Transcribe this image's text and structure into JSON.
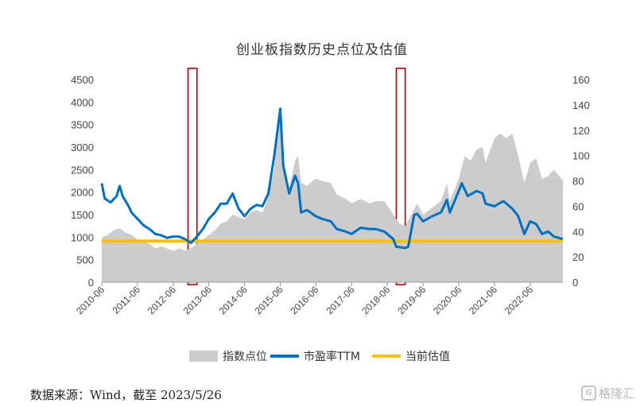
{
  "chart_data": {
    "type": "area+line",
    "title": "创业板指数历史点位及估值",
    "y_left": {
      "min": 0,
      "max": 4500,
      "step": 500,
      "ticks": [
        "0",
        "500",
        "1000",
        "1500",
        "2000",
        "2500",
        "3000",
        "3500",
        "4000",
        "4500"
      ]
    },
    "y_right": {
      "min": 0,
      "max": 160,
      "step": 20,
      "ticks": [
        "0",
        "20",
        "40",
        "60",
        "80",
        "100",
        "120",
        "140",
        "160"
      ]
    },
    "x_range": [
      "2010-06",
      "2023-05"
    ],
    "x_ticks": [
      "2010-06",
      "2011-06",
      "2012-06",
      "2013-06",
      "2014-06",
      "2015-06",
      "2016-06",
      "2017-06",
      "2018-06",
      "2019-06",
      "2020-06",
      "2021-06",
      "2022-06"
    ],
    "current_valuation": 32.5,
    "highlights": [
      {
        "from": "2012-11",
        "to": "2013-02"
      },
      {
        "from": "2018-09",
        "to": "2018-12"
      }
    ],
    "series": [
      {
        "name": "指数点位",
        "type": "area",
        "axis": "left",
        "color": "#cccccc",
        "points": [
          [
            "2010-06",
            1000
          ],
          [
            "2010-08",
            1050
          ],
          [
            "2010-10",
            1150
          ],
          [
            "2010-12",
            1200
          ],
          [
            "2011-02",
            1100
          ],
          [
            "2011-04",
            1050
          ],
          [
            "2011-06",
            950
          ],
          [
            "2011-08",
            900
          ],
          [
            "2011-10",
            850
          ],
          [
            "2011-12",
            750
          ],
          [
            "2012-02",
            800
          ],
          [
            "2012-04",
            750
          ],
          [
            "2012-06",
            700
          ],
          [
            "2012-08",
            750
          ],
          [
            "2012-10",
            700
          ],
          [
            "2012-12",
            750
          ],
          [
            "2013-02",
            850
          ],
          [
            "2013-04",
            950
          ],
          [
            "2013-06",
            1050
          ],
          [
            "2013-08",
            1150
          ],
          [
            "2013-10",
            1300
          ],
          [
            "2013-12",
            1350
          ],
          [
            "2014-02",
            1500
          ],
          [
            "2014-04",
            1450
          ],
          [
            "2014-06",
            1400
          ],
          [
            "2014-08",
            1550
          ],
          [
            "2014-10",
            1600
          ],
          [
            "2014-12",
            1550
          ],
          [
            "2015-02",
            1900
          ],
          [
            "2015-04",
            2500
          ],
          [
            "2015-06",
            3950
          ],
          [
            "2015-07",
            2700
          ],
          [
            "2015-09",
            2100
          ],
          [
            "2015-11",
            2700
          ],
          [
            "2015-12",
            2800
          ],
          [
            "2016-01",
            2200
          ],
          [
            "2016-03",
            2150
          ],
          [
            "2016-06",
            2300
          ],
          [
            "2016-08",
            2250
          ],
          [
            "2016-11",
            2200
          ],
          [
            "2017-01",
            1950
          ],
          [
            "2017-04",
            1850
          ],
          [
            "2017-06",
            1750
          ],
          [
            "2017-09",
            1850
          ],
          [
            "2017-12",
            1750
          ],
          [
            "2018-02",
            1800
          ],
          [
            "2018-05",
            1800
          ],
          [
            "2018-08",
            1500
          ],
          [
            "2018-10",
            1300
          ],
          [
            "2018-12",
            1250
          ],
          [
            "2019-02",
            1500
          ],
          [
            "2019-04",
            1750
          ],
          [
            "2019-06",
            1500
          ],
          [
            "2019-09",
            1650
          ],
          [
            "2019-12",
            1800
          ],
          [
            "2020-02",
            2200
          ],
          [
            "2020-03",
            1800
          ],
          [
            "2020-06",
            2300
          ],
          [
            "2020-08",
            2800
          ],
          [
            "2020-10",
            2700
          ],
          [
            "2020-12",
            2950
          ],
          [
            "2021-02",
            3000
          ],
          [
            "2021-03",
            2650
          ],
          [
            "2021-06",
            3200
          ],
          [
            "2021-08",
            3300
          ],
          [
            "2021-10",
            3200
          ],
          [
            "2021-12",
            3300
          ],
          [
            "2022-02",
            2800
          ],
          [
            "2022-04",
            2200
          ],
          [
            "2022-06",
            2650
          ],
          [
            "2022-08",
            2750
          ],
          [
            "2022-10",
            2300
          ],
          [
            "2022-12",
            2350
          ],
          [
            "2023-02",
            2500
          ],
          [
            "2023-05",
            2250
          ]
        ]
      },
      {
        "name": "市盈率TTM",
        "type": "line",
        "axis": "right",
        "color": "#0070c0",
        "points": [
          [
            "2010-06",
            78
          ],
          [
            "2010-07",
            66
          ],
          [
            "2010-09",
            63
          ],
          [
            "2010-11",
            68
          ],
          [
            "2010-12",
            76
          ],
          [
            "2011-01",
            68
          ],
          [
            "2011-03",
            60
          ],
          [
            "2011-04",
            55
          ],
          [
            "2011-06",
            50
          ],
          [
            "2011-08",
            45
          ],
          [
            "2011-10",
            42
          ],
          [
            "2011-12",
            38
          ],
          [
            "2012-02",
            37
          ],
          [
            "2012-04",
            35
          ],
          [
            "2012-06",
            36
          ],
          [
            "2012-08",
            36
          ],
          [
            "2012-10",
            34
          ],
          [
            "2012-12",
            31
          ],
          [
            "2013-02",
            36
          ],
          [
            "2013-04",
            42
          ],
          [
            "2013-06",
            50
          ],
          [
            "2013-08",
            55
          ],
          [
            "2013-10",
            62
          ],
          [
            "2013-12",
            62
          ],
          [
            "2014-02",
            70
          ],
          [
            "2014-04",
            58
          ],
          [
            "2014-06",
            52
          ],
          [
            "2014-08",
            58
          ],
          [
            "2014-10",
            61
          ],
          [
            "2014-12",
            60
          ],
          [
            "2015-02",
            70
          ],
          [
            "2015-04",
            100
          ],
          [
            "2015-06",
            137
          ],
          [
            "2015-07",
            92
          ],
          [
            "2015-09",
            70
          ],
          [
            "2015-11",
            84
          ],
          [
            "2015-12",
            78
          ],
          [
            "2016-01",
            55
          ],
          [
            "2016-03",
            57
          ],
          [
            "2016-06",
            52
          ],
          [
            "2016-08",
            50
          ],
          [
            "2016-11",
            48
          ],
          [
            "2017-01",
            42
          ],
          [
            "2017-04",
            40
          ],
          [
            "2017-06",
            38
          ],
          [
            "2017-09",
            43
          ],
          [
            "2017-12",
            42
          ],
          [
            "2018-02",
            42
          ],
          [
            "2018-05",
            40
          ],
          [
            "2018-08",
            34
          ],
          [
            "2018-09",
            28
          ],
          [
            "2018-12",
            27
          ],
          [
            "2019-01",
            28
          ],
          [
            "2019-03",
            53
          ],
          [
            "2019-04",
            54
          ],
          [
            "2019-06",
            48
          ],
          [
            "2019-09",
            52
          ],
          [
            "2019-12",
            55
          ],
          [
            "2020-02",
            65
          ],
          [
            "2020-03",
            55
          ],
          [
            "2020-06",
            72
          ],
          [
            "2020-07",
            78
          ],
          [
            "2020-09",
            68
          ],
          [
            "2020-12",
            72
          ],
          [
            "2021-02",
            70
          ],
          [
            "2021-03",
            62
          ],
          [
            "2021-06",
            60
          ],
          [
            "2021-09",
            64
          ],
          [
            "2021-12",
            58
          ],
          [
            "2022-02",
            52
          ],
          [
            "2022-04",
            38
          ],
          [
            "2022-06",
            48
          ],
          [
            "2022-08",
            46
          ],
          [
            "2022-10",
            38
          ],
          [
            "2022-12",
            40
          ],
          [
            "2023-02",
            36
          ],
          [
            "2023-05",
            34
          ]
        ]
      },
      {
        "name": "当前估值",
        "type": "hline",
        "axis": "right",
        "color": "#ffc000"
      }
    ]
  },
  "source_text": "数据来源：Wind，截至 2023/5/26",
  "watermark": "格隆汇",
  "watermark_icon": "G"
}
